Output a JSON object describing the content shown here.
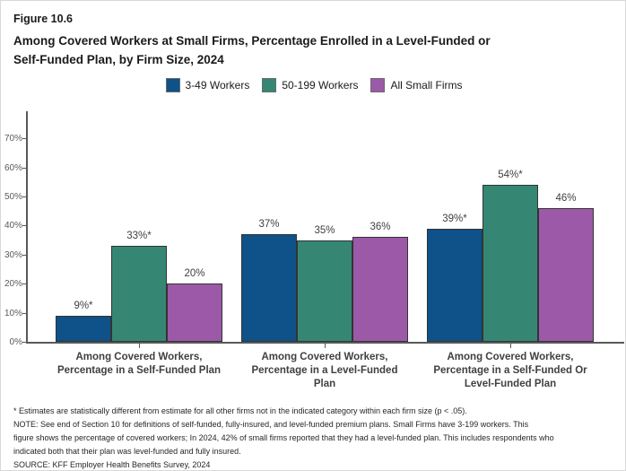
{
  "figure_label": "Figure 10.6",
  "title": "Among Covered Workers at Small Firms, Percentage Enrolled in a Level-Funded or\nSelf-Funded Plan, by Firm Size, 2024",
  "chart_data": {
    "type": "bar",
    "title": "Among Covered Workers at Small Firms, Percentage Enrolled in a Level-Funded or Self-Funded Plan, by Firm Size, 2024",
    "categories": [
      "Among Covered Workers,\nPercentage in a Self-Funded Plan",
      "Among Covered Workers,\nPercentage in a Level-Funded\nPlan",
      "Among Covered Workers,\nPercentage in a Self-Funded Or\nLevel-Funded Plan"
    ],
    "series": [
      {
        "name": "3-49 Workers",
        "color": "#0E5289",
        "values": [
          9,
          37,
          39
        ],
        "labels": [
          "9%*",
          "37%",
          "39%*"
        ]
      },
      {
        "name": "50-199 Workers",
        "color": "#358773",
        "values": [
          33,
          35,
          54
        ],
        "labels": [
          "33%*",
          "35%",
          "54%*"
        ]
      },
      {
        "name": "All Small Firms",
        "color": "#9C59A7",
        "values": [
          20,
          36,
          46
        ],
        "labels": [
          "20%",
          "36%",
          "46%"
        ]
      }
    ],
    "y_ticks": [
      "0%",
      "10%",
      "20%",
      "30%",
      "40%",
      "50%",
      "60%",
      "70%"
    ],
    "ylim": [
      0,
      78
    ],
    "grid": false,
    "legend_position": "top-center",
    "xlabel": "",
    "ylabel": ""
  },
  "footnotes": {
    "asterisk": "* Estimates are statistically different from estimate for all other firms not in the indicated category within each firm size (p < .05).",
    "note": "NOTE: See end of Section 10 for definitions of self-funded, fully-insured, and level-funded premium plans. Small Firms have 3-199 workers. This\nfigure shows the percentage of covered workers; In 2024, 42% of small firms reported that they had a level-funded plan. This includes respondents who\nindicated both that their plan was level-funded and fully insured.",
    "source": "SOURCE: KFF Employer Health Benefits Survey, 2024"
  }
}
